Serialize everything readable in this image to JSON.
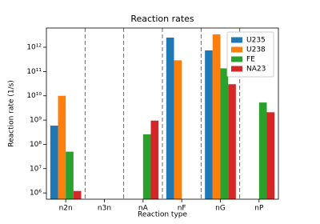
{
  "chart_data": {
    "type": "bar",
    "title": "Reaction rates",
    "x_label": "Reaction type",
    "y_label": "Reaction rate (1/s)",
    "categories": [
      "n2n",
      "n3n",
      "nA",
      "nF",
      "nG",
      "nP"
    ],
    "series": [
      {
        "name": "U235",
        "color": "#1f77b4",
        "values": [
          590000000,
          null,
          null,
          2500000000000,
          740000000000,
          null
        ]
      },
      {
        "name": "U238",
        "color": "#ff7f0e",
        "values": [
          10000000000,
          null,
          null,
          290000000000,
          3400000000000,
          null
        ]
      },
      {
        "name": "FE",
        "color": "#2ca02c",
        "values": [
          50000000,
          null,
          260000000,
          null,
          135000000000,
          5300000000
        ]
      },
      {
        "name": "NA23",
        "color": "#d62728",
        "values": [
          1200000,
          null,
          950000000,
          null,
          30000000000,
          2100000000
        ]
      }
    ],
    "log_scale": true,
    "ylim": [
      550000,
      6200000000000
    ],
    "yticks": [
      {
        "value": 1000000,
        "label": "10⁶"
      },
      {
        "value": 10000000,
        "label": "10⁷"
      },
      {
        "value": 100000000,
        "label": "10⁸"
      },
      {
        "value": 1000000000,
        "label": "10⁹"
      },
      {
        "value": 10000000000,
        "label": "10¹⁰"
      },
      {
        "value": 100000000000,
        "label": "10¹¹"
      },
      {
        "value": 1000000000000,
        "label": "10¹²"
      }
    ],
    "category_separators": true,
    "legend": "upper right"
  }
}
